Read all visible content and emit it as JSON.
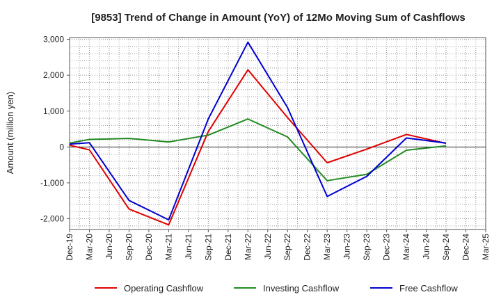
{
  "chart_data": {
    "type": "line",
    "title": "[9853]  Trend of Change in Amount (YoY) of 12Mo Moving Sum of Cashflows",
    "xlabel": "",
    "ylabel": "Amount (million yen)",
    "ylim": [
      -2300,
      3050
    ],
    "yticks": [
      3000,
      2000,
      1000,
      0,
      -1000,
      -2000
    ],
    "ytick_labels": [
      "3,000",
      "2,000",
      "1,000",
      "0",
      "-1,000",
      "-2,000"
    ],
    "categories": [
      "Dec-19",
      "Mar-20",
      "Jun-20",
      "Sep-20",
      "Dec-20",
      "Mar-21",
      "Jun-21",
      "Sep-21",
      "Dec-21",
      "Mar-22",
      "Jun-22",
      "Sep-22",
      "Dec-22",
      "Mar-23",
      "Jun-23",
      "Sep-23",
      "Dec-23",
      "Mar-24",
      "Jun-24",
      "Sep-24",
      "Dec-24",
      "Mar-25"
    ],
    "grid": true,
    "legend_position": "bottom",
    "series": [
      {
        "name": "Operating Cashflow",
        "color": "#e00000",
        "values": [
          50,
          -80,
          null,
          -1730,
          null,
          -2170,
          null,
          430,
          null,
          2150,
          null,
          820,
          null,
          -440,
          null,
          -60,
          null,
          350,
          null,
          100,
          null,
          null
        ]
      },
      {
        "name": "Investing Cashflow",
        "color": "#228b22",
        "values": [
          110,
          210,
          null,
          240,
          null,
          140,
          null,
          330,
          null,
          780,
          null,
          280,
          null,
          -940,
          null,
          -760,
          null,
          -90,
          null,
          30,
          null,
          null
        ]
      },
      {
        "name": "Free Cashflow",
        "color": "#0000d0",
        "values": [
          80,
          120,
          null,
          -1490,
          null,
          -2030,
          null,
          780,
          null,
          2920,
          null,
          1100,
          null,
          -1380,
          null,
          -820,
          null,
          250,
          null,
          110,
          null,
          null
        ]
      }
    ]
  }
}
